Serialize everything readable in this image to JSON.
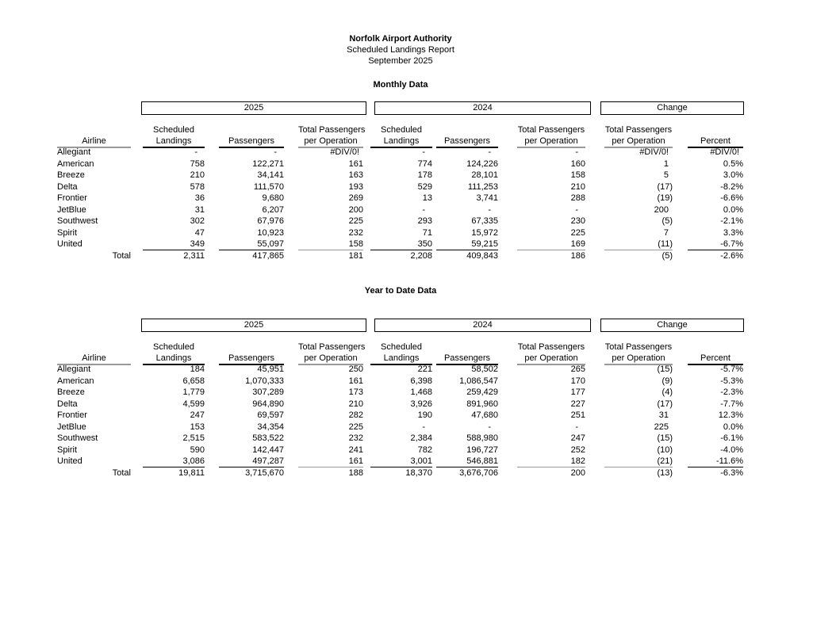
{
  "report": {
    "title": "Norfolk Airport Authority",
    "subtitle": "Scheduled Landings Report",
    "period": "September 2025"
  },
  "tables": [
    {
      "section_title": "Monthly Data",
      "group_headers": {
        "y2025": "2025",
        "y2024": "2024",
        "change": "Change"
      },
      "airline_header": "Airline",
      "col_headers": {
        "landings_1": "Scheduled",
        "landings_2": "Landings",
        "passengers": "Passengers",
        "perop_1": "Total Passengers",
        "perop_2": "per Operation",
        "percent": "Percent"
      },
      "rows": [
        {
          "airline": "Allegiant",
          "values": [
            "-",
            "-",
            "#DIV/0!",
            "-",
            "-",
            "-",
            "#DIV/0!",
            "#DIV/0!"
          ]
        },
        {
          "airline": "American",
          "values": [
            "758",
            "122,271",
            "161",
            "774",
            "124,226",
            "160",
            "1",
            "0.5%"
          ]
        },
        {
          "airline": "Breeze",
          "values": [
            "210",
            "34,141",
            "163",
            "178",
            "28,101",
            "158",
            "5",
            "3.0%"
          ]
        },
        {
          "airline": "Delta",
          "values": [
            "578",
            "111,570",
            "193",
            "529",
            "111,253",
            "210",
            "(17)",
            "-8.2%"
          ]
        },
        {
          "airline": "Frontier",
          "values": [
            "36",
            "9,680",
            "269",
            "13",
            "3,741",
            "288",
            "(19)",
            "-6.6%"
          ]
        },
        {
          "airline": "JetBlue",
          "values": [
            "31",
            "6,207",
            "200",
            "-",
            "-",
            "-",
            "200",
            "0.0%"
          ]
        },
        {
          "airline": "Southwest",
          "values": [
            "302",
            "67,976",
            "225",
            "293",
            "67,335",
            "230",
            "(5)",
            "-2.1%"
          ]
        },
        {
          "airline": "Spirit",
          "values": [
            "47",
            "10,923",
            "232",
            "71",
            "15,972",
            "225",
            "7",
            "3.3%"
          ]
        },
        {
          "airline": "United",
          "values": [
            "349",
            "55,097",
            "158",
            "350",
            "59,215",
            "169",
            "(11)",
            "-6.7%"
          ]
        }
      ],
      "total_row": {
        "label": "Total",
        "values": [
          "2,311",
          "417,865",
          "181",
          "2,208",
          "409,843",
          "186",
          "(5)",
          "-2.6%"
        ]
      }
    },
    {
      "section_title": "Year to Date Data",
      "group_headers": {
        "y2025": "2025",
        "y2024": "2024",
        "change": "Change"
      },
      "airline_header": "Airline",
      "col_headers": {
        "landings_1": "Scheduled",
        "landings_2": "Landings",
        "passengers": "Passengers",
        "perop_1": "Total Passengers",
        "perop_2": "per Operation",
        "percent": "Percent"
      },
      "rows": [
        {
          "airline": "Allegiant",
          "values": [
            "184",
            "45,951",
            "250",
            "221",
            "58,502",
            "265",
            "(15)",
            "-5.7%"
          ]
        },
        {
          "airline": "American",
          "values": [
            "6,658",
            "1,070,333",
            "161",
            "6,398",
            "1,086,547",
            "170",
            "(9)",
            "-5.3%"
          ]
        },
        {
          "airline": "Breeze",
          "values": [
            "1,779",
            "307,289",
            "173",
            "1,468",
            "259,429",
            "177",
            "(4)",
            "-2.3%"
          ]
        },
        {
          "airline": "Delta",
          "values": [
            "4,599",
            "964,890",
            "210",
            "3,926",
            "891,960",
            "227",
            "(17)",
            "-7.7%"
          ]
        },
        {
          "airline": "Frontier",
          "values": [
            "247",
            "69,597",
            "282",
            "190",
            "47,680",
            "251",
            "31",
            "12.3%"
          ]
        },
        {
          "airline": "JetBlue",
          "values": [
            "153",
            "34,354",
            "225",
            "-",
            "-",
            "-",
            "225",
            "0.0%"
          ]
        },
        {
          "airline": "Southwest",
          "values": [
            "2,515",
            "583,522",
            "232",
            "2,384",
            "588,980",
            "247",
            "(15)",
            "-6.1%"
          ]
        },
        {
          "airline": "Spirit",
          "values": [
            "590",
            "142,447",
            "241",
            "782",
            "196,727",
            "252",
            "(10)",
            "-4.0%"
          ]
        },
        {
          "airline": "United",
          "values": [
            "3,086",
            "497,287",
            "161",
            "3,001",
            "546,881",
            "182",
            "(21)",
            "-11.6%"
          ]
        }
      ],
      "total_row": {
        "label": "Total",
        "values": [
          "19,811",
          "3,715,670",
          "188",
          "18,370",
          "3,676,706",
          "200",
          "(13)",
          "-6.3%"
        ]
      }
    }
  ]
}
